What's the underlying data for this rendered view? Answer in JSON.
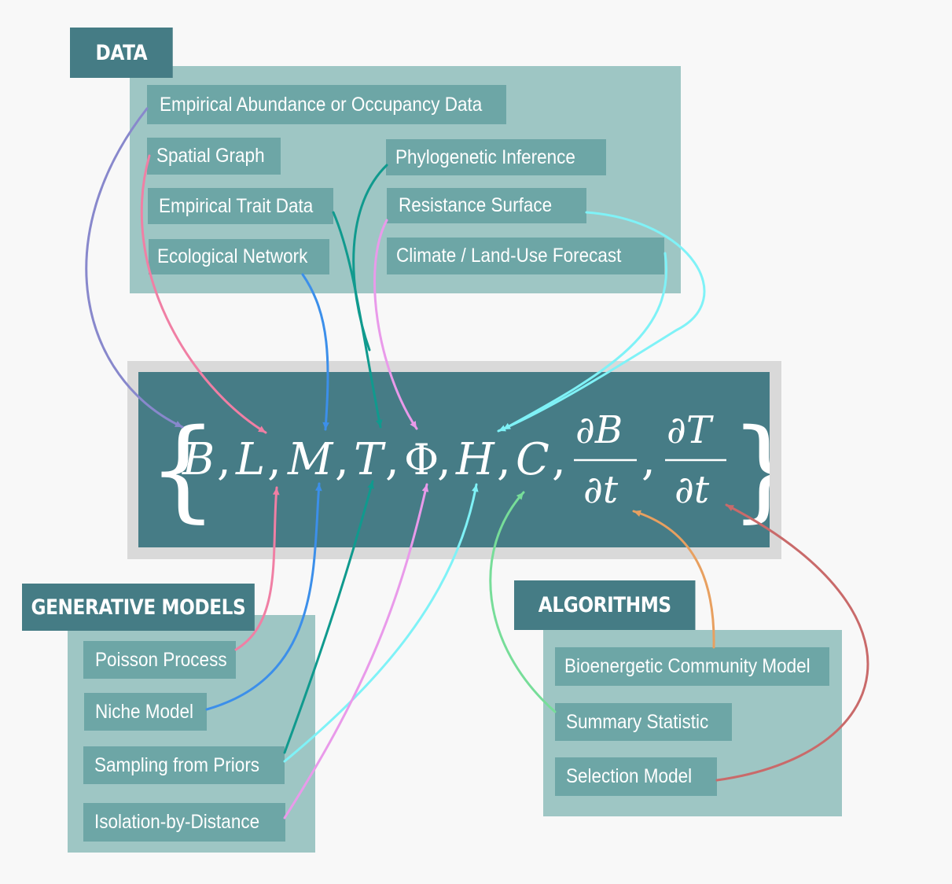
{
  "sections": {
    "data": "DATA",
    "generative_models": "GENERATIVE MODELS",
    "algorithms": "ALGORITHMS"
  },
  "data_nodes": {
    "empirical_abundance": "Empirical Abundance or Occupancy Data",
    "spatial_graph": "Spatial Graph",
    "phylogenetic_inference": "Phylogenetic Inference",
    "empirical_trait": "Empirical Trait Data",
    "resistance_surface": "Resistance Surface",
    "ecological_network": "Ecological Network",
    "climate_forecast": "Climate / Land-Use Forecast"
  },
  "generative_nodes": {
    "poisson_process": "Poisson Process",
    "niche_model": "Niche Model",
    "sampling_priors": "Sampling from Priors",
    "isolation_distance": "Isolation-by-Distance"
  },
  "algorithm_nodes": {
    "bioenergetic": "Bioenergetic Community Model",
    "summary_statistic": "Summary Statistic",
    "selection_model": "Selection Model"
  },
  "equation": {
    "open_brace": "{",
    "close_brace": "}",
    "B": "B",
    "L": "L",
    "M": "M",
    "T": "T",
    "Phi": "Φ",
    "H": "H",
    "C": "C",
    "comma": ",",
    "dB_num": "∂B",
    "dB_den": "∂t",
    "dT_num": "∂T",
    "dT_den": "∂t"
  },
  "colors": {
    "panel": "#9ec6c4",
    "header": "#457c85",
    "node": "#6da6a6",
    "equation_box": "#467c86",
    "equation_frame": "#d9d9d9",
    "arrow_abundance": "#8888cc",
    "arrow_spatial": "#f07fa4",
    "arrow_trait": "#109a8e",
    "arrow_network": "#3c8fea",
    "arrow_phylo": "#109a8e",
    "arrow_resistance": "#e99aea",
    "arrow_climate": "#7ff2f7",
    "arrow_poisson": "#f07fa4",
    "arrow_niche": "#3c8fea",
    "arrow_sampling_T": "#109a8e",
    "arrow_sampling_H": "#7ff2f7",
    "arrow_isolation": "#e99aea",
    "arrow_summary": "#77dd99",
    "arrow_bioenergetic": "#e8a060",
    "arrow_selection": "#c96a6a"
  }
}
